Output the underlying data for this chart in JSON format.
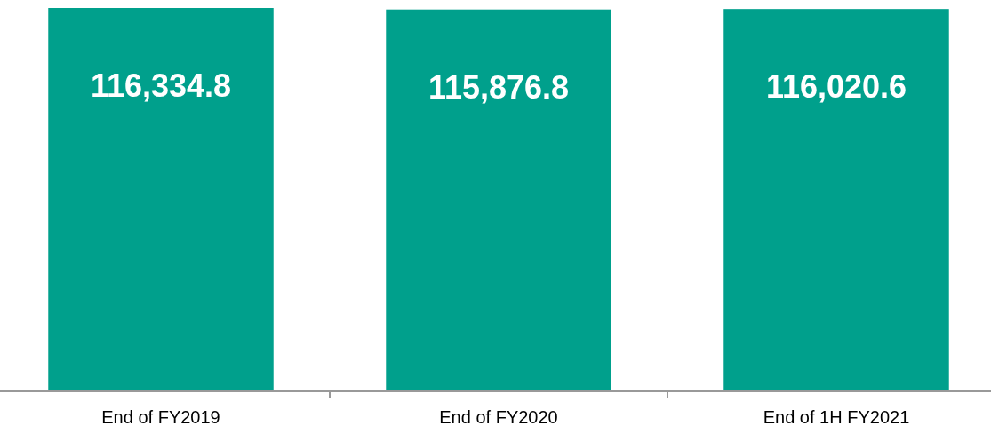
{
  "chart_data": {
    "type": "bar",
    "categories": [
      "End of FY2019",
      "End of FY2020",
      "End of 1H FY2021"
    ],
    "values": [
      116334.8,
      115876.8,
      116020.6
    ],
    "color": "#00a08c",
    "value_labels": [
      "116,334.8",
      "115,876.8",
      "116,020.6"
    ]
  }
}
